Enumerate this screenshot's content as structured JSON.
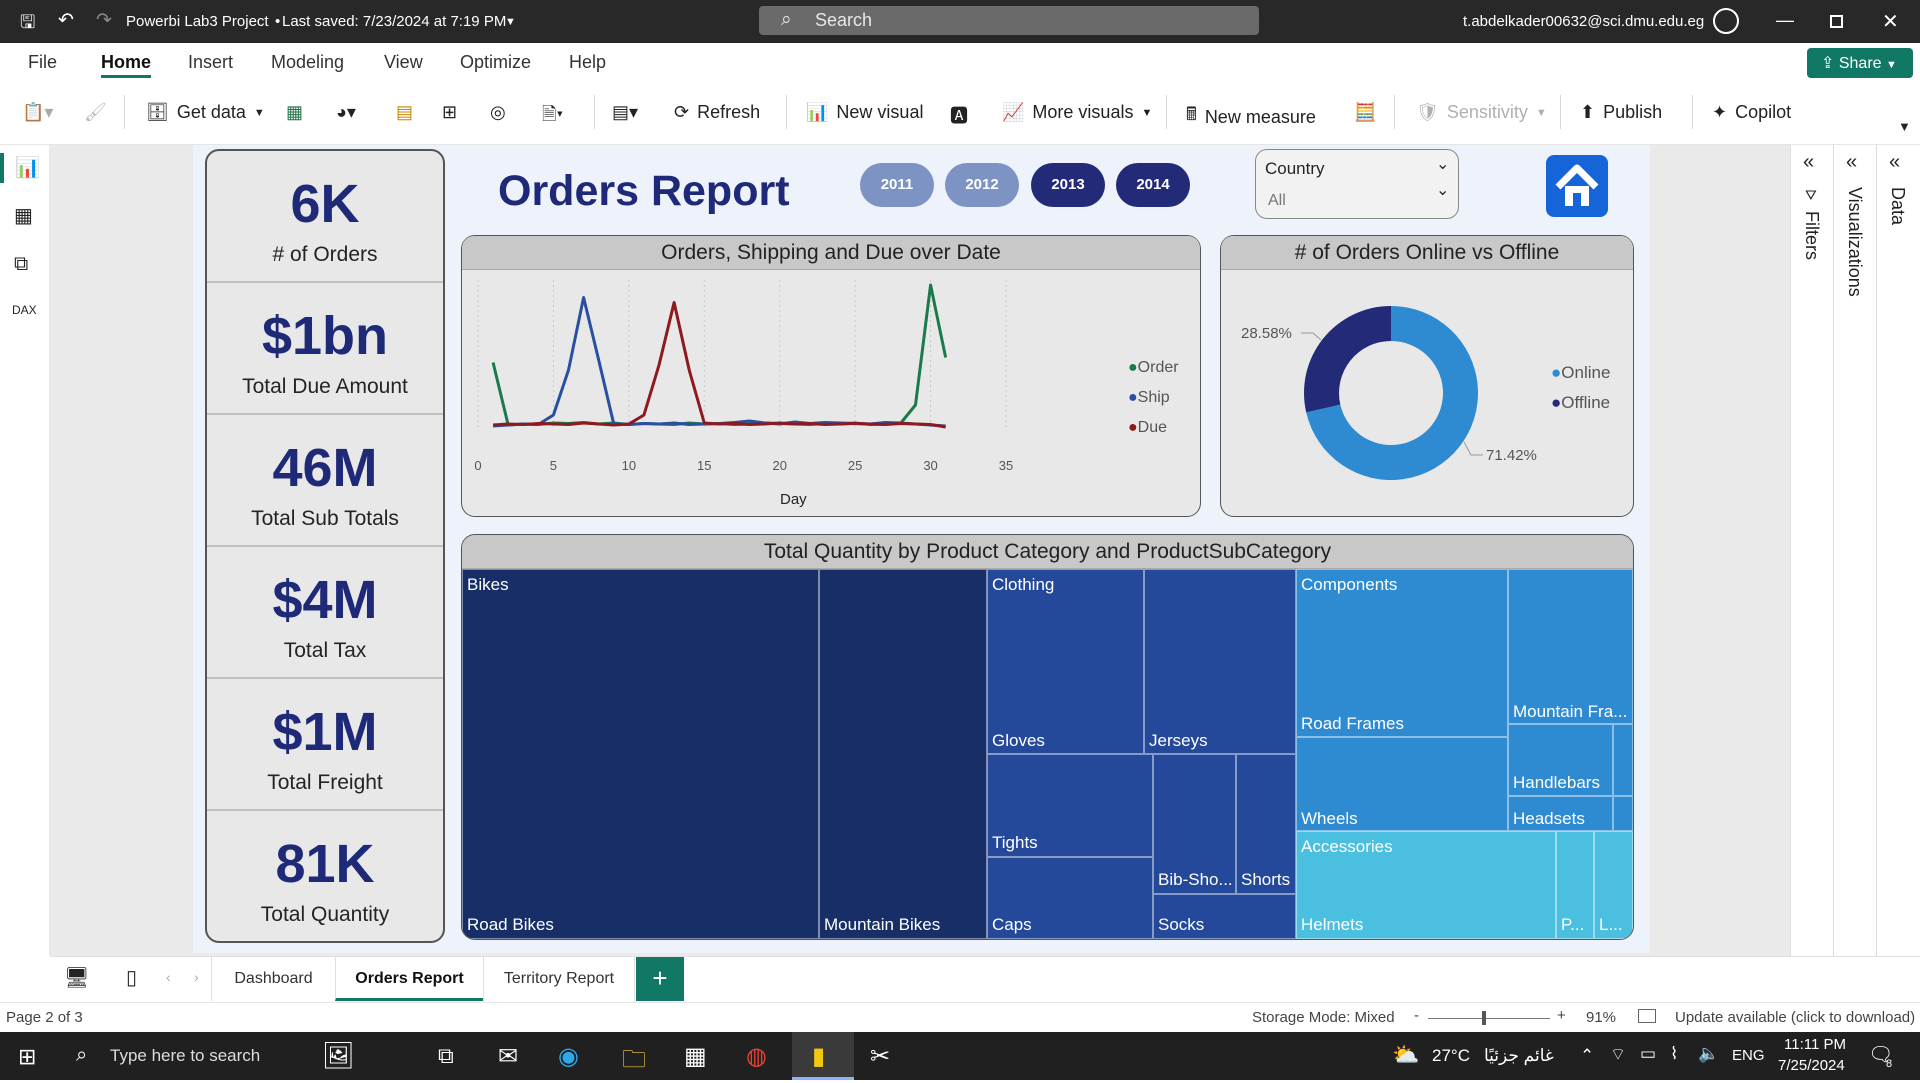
{
  "titlebar": {
    "project": "Powerbi Lab3 Project",
    "saved": "Last saved: 7/23/2024 at 7:19 PM",
    "search": "Search",
    "user": "t.abdelkader00632@sci.dmu.edu.eg"
  },
  "menu": [
    "File",
    "Home",
    "Insert",
    "Modeling",
    "View",
    "Optimize",
    "Help"
  ],
  "share_label": "Share",
  "ribbon": {
    "get_data": "Get data",
    "refresh": "Refresh",
    "new_visual": "New visual",
    "more_visuals": "More visuals",
    "new_measure": "New measure",
    "sensitivity": "Sensitivity",
    "publish": "Publish",
    "copilot": "Copilot"
  },
  "report": {
    "title": "Orders Report",
    "years": [
      "2011",
      "2012",
      "2013",
      "2014"
    ],
    "slicer_label": "Country",
    "slicer_value": "All",
    "kpis": [
      {
        "value": "6K",
        "label": "# of Orders"
      },
      {
        "value": "$1bn",
        "label": "Total Due Amount"
      },
      {
        "value": "46M",
        "label": "Total Sub Totals"
      },
      {
        "value": "$4M",
        "label": "Total Tax"
      },
      {
        "value": "$1M",
        "label": "Total Freight"
      },
      {
        "value": "81K",
        "label": "Total Quantity"
      }
    ],
    "colors": {
      "order": "#1b7a4a",
      "ship": "#2a4fa0",
      "due": "#8e1a1f",
      "online": "#2e8bd2",
      "offline": "#232a78"
    }
  },
  "chart_data": [
    {
      "type": "line",
      "title": "Orders, Shipping and Due over Date",
      "xlabel": "Day",
      "xlim": [
        0,
        35
      ],
      "xticks": [
        "0",
        "5",
        "10",
        "15",
        "20",
        "25",
        "30",
        "35"
      ],
      "x": [
        1,
        2,
        3,
        4,
        5,
        6,
        7,
        8,
        9,
        10,
        11,
        12,
        13,
        14,
        15,
        16,
        17,
        18,
        19,
        20,
        21,
        22,
        23,
        24,
        25,
        26,
        27,
        28,
        29,
        30,
        31
      ],
      "series": [
        {
          "name": "Order",
          "values": [
            135,
            10,
            12,
            11,
            14,
            13,
            15,
            12,
            14,
            11,
            13,
            12,
            11,
            14,
            12,
            13,
            11,
            12,
            14,
            13,
            12,
            11,
            13,
            12,
            14,
            11,
            12,
            13,
            50,
            290,
            145
          ]
        },
        {
          "name": "Ship",
          "values": [
            8,
            10,
            12,
            11,
            30,
            120,
            265,
            140,
            12,
            11,
            13,
            12,
            14,
            11,
            12,
            13,
            15,
            18,
            14,
            12,
            16,
            13,
            15,
            14,
            13,
            12,
            15,
            14,
            12,
            10,
            8
          ]
        },
        {
          "name": "Due",
          "values": [
            10,
            12,
            11,
            13,
            12,
            11,
            14,
            12,
            10,
            12,
            30,
            130,
            255,
            120,
            14,
            12,
            13,
            11,
            12,
            14,
            12,
            13,
            11,
            12,
            13,
            12,
            11,
            13,
            12,
            11,
            6
          ]
        }
      ],
      "legend": "right"
    },
    {
      "type": "pie",
      "title": "# of Orders Online vs Offline",
      "categories": [
        "Online",
        "Offline"
      ],
      "values": [
        71.42,
        28.58
      ],
      "labels": [
        "71.42%",
        "28.58%"
      ],
      "legend": "right"
    }
  ],
  "treemap": {
    "title": "Total Quantity by Product Category and ProductSubCategory",
    "labels": [
      "Bikes",
      "Road Bikes",
      "Mountain Bikes",
      "Clothing",
      "Gloves",
      "Jerseys",
      "Tights",
      "Caps",
      "Bib-Sho...",
      "Socks",
      "Shorts",
      "Components",
      "Road Frames",
      "Wheels",
      "Mountain Fra...",
      "Handlebars",
      "Headsets",
      "Accessories",
      "Helmets",
      "P...",
      "L..."
    ]
  },
  "pages": [
    "Dashboard",
    "Orders Report",
    "Territory Report"
  ],
  "status": {
    "page": "Page 2 of 3",
    "storage": "Storage Mode: Mixed",
    "zoom": "91%",
    "update": "Update available (click to download)"
  },
  "taskbar": {
    "search": "Type here to search",
    "weather": "27°C",
    "weather_desc": "غائم جزئيًا",
    "lang": "ENG",
    "time": "11:11 PM",
    "date": "7/25/2024",
    "notif": "8"
  },
  "panes": {
    "filters": "Filters",
    "visualizations": "Visualizations",
    "data": "Data"
  }
}
